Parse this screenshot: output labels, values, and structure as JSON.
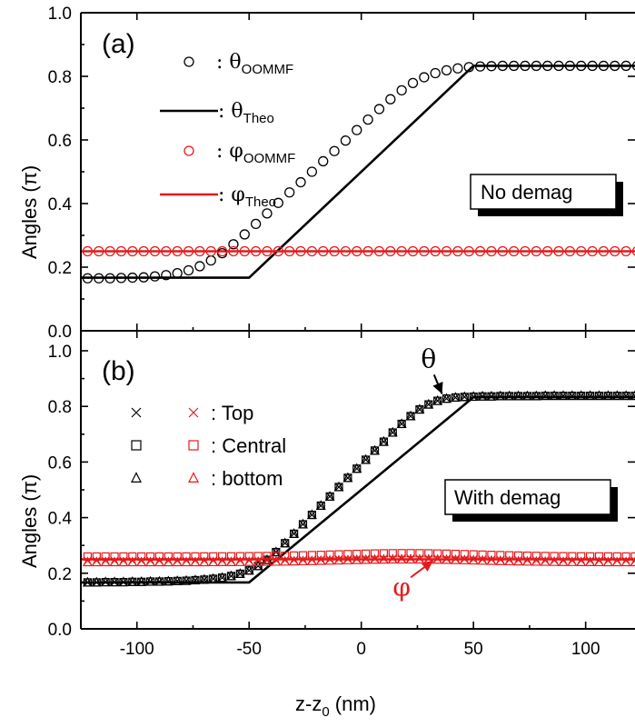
{
  "colors": {
    "black": "#000000",
    "red": "#e41a1c"
  },
  "xlabel_prefix": "z-z",
  "xlabel_sub": "0",
  "xlabel_suffix": " (nm)",
  "chart_data": [
    {
      "type": "scatter",
      "panel_label": "(a)",
      "ylabel": "Angles (π)",
      "xlim": [
        -125,
        122
      ],
      "ylim": [
        0.0,
        1.0
      ],
      "xticks": [
        -100,
        -50,
        0,
        50,
        100
      ],
      "yticks": [
        "0.0",
        "0.2",
        "0.4",
        "0.6",
        "0.8",
        "1.0"
      ],
      "box_label": "No demag",
      "legend": [
        {
          "sym": "θ",
          "sub": "OOMMF",
          "marker": "circle",
          "color": "black"
        },
        {
          "sym": "θ",
          "sub": "Theo",
          "marker": "line",
          "color": "black"
        },
        {
          "sym": "φ",
          "sub": "OOMMF",
          "marker": "circle",
          "color": "red"
        },
        {
          "sym": "φ",
          "sub": "Theo",
          "marker": "line",
          "color": "red"
        }
      ],
      "series": [
        {
          "name": "θOOMMF",
          "marker": "circle",
          "color": "black",
          "x_start": -122,
          "x_step": 5,
          "y": [
            0.165,
            0.165,
            0.165,
            0.166,
            0.167,
            0.168,
            0.171,
            0.175,
            0.181,
            0.19,
            0.203,
            0.221,
            0.244,
            0.272,
            0.303,
            0.336,
            0.369,
            0.402,
            0.435,
            0.467,
            0.5,
            0.533,
            0.565,
            0.598,
            0.631,
            0.664,
            0.697,
            0.728,
            0.756,
            0.779,
            0.797,
            0.81,
            0.819,
            0.825,
            0.829,
            0.831,
            0.832,
            0.833,
            0.833,
            0.833,
            0.833,
            0.833,
            0.833,
            0.833,
            0.833,
            0.833,
            0.833,
            0.833,
            0.833,
            0.833
          ]
        },
        {
          "name": "θTheo",
          "marker": "line",
          "color": "black",
          "points": [
            [
              -125,
              0.167
            ],
            [
              -50,
              0.167
            ],
            [
              50,
              0.833
            ],
            [
              122,
              0.833
            ]
          ]
        },
        {
          "name": "φOOMMF",
          "marker": "circle",
          "color": "red",
          "x_start": -122,
          "x_step": 5,
          "y_const": 0.25
        },
        {
          "name": "φTheo",
          "marker": "line",
          "color": "red",
          "points": [
            [
              -125,
              0.25
            ],
            [
              122,
              0.25
            ]
          ]
        }
      ]
    },
    {
      "type": "scatter",
      "panel_label": "(b)",
      "ylabel": "Angles (π)",
      "xlim": [
        -125,
        122
      ],
      "ylim": [
        0.0,
        1.0
      ],
      "xticks": [
        -100,
        -50,
        0,
        50,
        100
      ],
      "yticks": [
        "0.0",
        "0.2",
        "0.4",
        "0.6",
        "0.8",
        "1.0"
      ],
      "box_label": "With demag",
      "legend": [
        {
          "label": ": Top",
          "marker_black": "x",
          "marker_red": "x"
        },
        {
          "label": ": Central",
          "marker_black": "square",
          "marker_red": "square"
        },
        {
          "label": ": bottom",
          "marker_black": "triangle",
          "marker_red": "triangle"
        }
      ],
      "annotations": [
        {
          "text": "θ",
          "color": "black",
          "x": 30,
          "y": 0.94,
          "arrow_to": [
            36,
            0.845
          ]
        },
        {
          "text": "φ",
          "color": "red",
          "x": 18,
          "y": 0.12,
          "arrow_to": [
            32,
            0.245
          ]
        }
      ],
      "theta_theory": {
        "points": [
          [
            -125,
            0.167
          ],
          [
            -50,
            0.167
          ],
          [
            50,
            0.833
          ],
          [
            122,
            0.833
          ]
        ]
      },
      "phi_theory": {
        "y": 0.25
      },
      "theta_points": {
        "x_start": -122,
        "x_step": 4,
        "y": [
          0.167,
          0.167,
          0.168,
          0.168,
          0.168,
          0.169,
          0.169,
          0.17,
          0.17,
          0.171,
          0.172,
          0.173,
          0.175,
          0.177,
          0.18,
          0.184,
          0.19,
          0.198,
          0.21,
          0.226,
          0.248,
          0.276,
          0.308,
          0.342,
          0.376,
          0.41,
          0.443,
          0.476,
          0.51,
          0.543,
          0.576,
          0.608,
          0.641,
          0.673,
          0.706,
          0.737,
          0.765,
          0.789,
          0.807,
          0.82,
          0.828,
          0.832,
          0.834,
          0.835,
          0.836,
          0.836,
          0.837,
          0.837,
          0.837,
          0.837,
          0.837,
          0.838,
          0.838,
          0.838,
          0.838,
          0.838,
          0.838,
          0.838,
          0.838,
          0.838,
          0.838,
          0.838
        ]
      },
      "phi_points": {
        "x_start": -122,
        "x_step": 4,
        "central_base": 0.26,
        "central_bump": 0.012,
        "top_base": 0.245,
        "top_bump": 0.008,
        "bottom_base": 0.24,
        "bottom_bump": 0.01,
        "bump_center": 20,
        "bump_width": 45
      }
    }
  ]
}
